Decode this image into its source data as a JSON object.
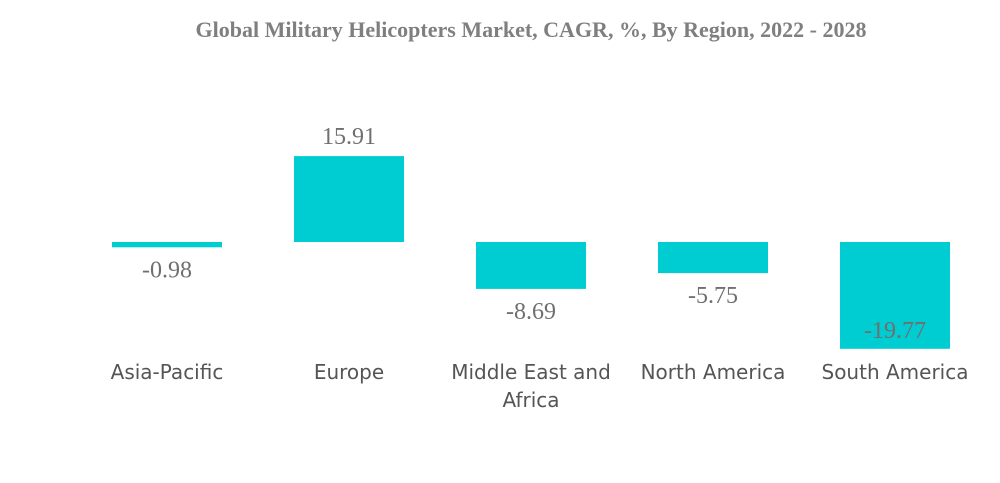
{
  "chart_data": {
    "type": "bar",
    "title": "Global Military Helicopters Market, CAGR, %, By Region, 2022 - 2028",
    "categories": [
      [
        "Asia-Pacific"
      ],
      [
        "Europe"
      ],
      [
        "Middle East and",
        "Africa"
      ],
      [
        "North America"
      ],
      [
        "South America"
      ]
    ],
    "values": [
      -0.98,
      15.91,
      -8.69,
      -5.75,
      -19.77
    ],
    "data_labels": [
      "-0.98",
      "15.91",
      "-8.69",
      "-5.75",
      "-19.77"
    ],
    "bar_color": "#00cdd1",
    "xlabel": "",
    "ylabel": "",
    "grid": false,
    "legend": "none"
  }
}
